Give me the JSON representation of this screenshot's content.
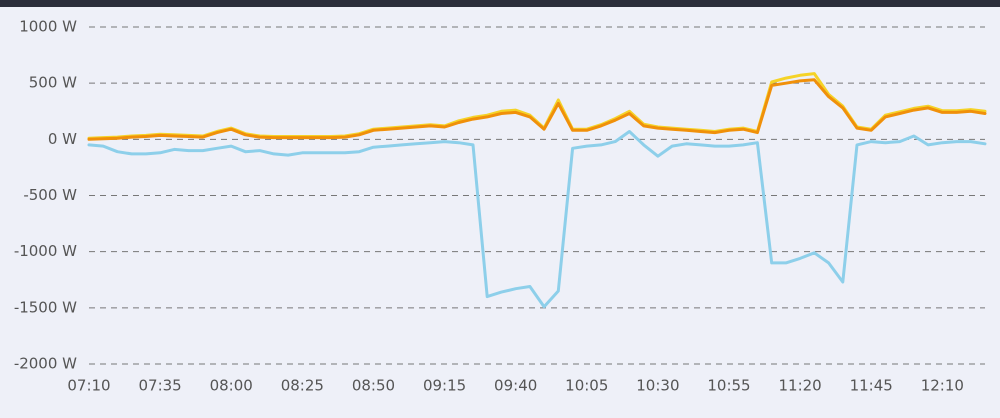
{
  "chart_data": {
    "type": "line",
    "x": [
      "07:10",
      "07:15",
      "07:20",
      "07:25",
      "07:30",
      "07:35",
      "07:40",
      "07:45",
      "07:50",
      "07:55",
      "08:00",
      "08:05",
      "08:10",
      "08:15",
      "08:20",
      "08:25",
      "08:30",
      "08:35",
      "08:40",
      "08:45",
      "08:50",
      "08:55",
      "09:00",
      "09:05",
      "09:10",
      "09:15",
      "09:20",
      "09:25",
      "09:30",
      "09:35",
      "09:40",
      "09:45",
      "09:50",
      "09:55",
      "10:00",
      "10:05",
      "10:10",
      "10:15",
      "10:20",
      "10:25",
      "10:30",
      "10:35",
      "10:40",
      "10:45",
      "10:50",
      "10:55",
      "11:00",
      "11:05",
      "11:10",
      "11:15",
      "11:20",
      "11:25",
      "11:30",
      "11:35",
      "11:40",
      "11:45",
      "11:50",
      "11:55",
      "12:00",
      "12:05",
      "12:10",
      "12:15",
      "12:20",
      "12:25"
    ],
    "series": [
      {
        "color": "#f5d327",
        "values": [
          10,
          15,
          20,
          30,
          35,
          45,
          40,
          35,
          30,
          70,
          100,
          50,
          30,
          25,
          25,
          25,
          25,
          25,
          30,
          50,
          90,
          100,
          110,
          120,
          130,
          120,
          165,
          195,
          215,
          250,
          260,
          215,
          100,
          350,
          90,
          90,
          130,
          185,
          250,
          135,
          110,
          100,
          90,
          80,
          70,
          90,
          100,
          70,
          510,
          545,
          570,
          585,
          400,
          295,
          110,
          90,
          215,
          245,
          275,
          295,
          255,
          255,
          265,
          250
        ]
      },
      {
        "color": "#f0900a",
        "values": [
          0,
          5,
          10,
          20,
          25,
          35,
          30,
          25,
          20,
          60,
          90,
          40,
          20,
          15,
          15,
          15,
          15,
          15,
          20,
          40,
          80,
          90,
          100,
          110,
          120,
          110,
          150,
          180,
          200,
          230,
          240,
          200,
          90,
          320,
          80,
          80,
          120,
          170,
          230,
          120,
          100,
          90,
          80,
          70,
          60,
          80,
          90,
          60,
          480,
          500,
          520,
          530,
          380,
          280,
          100,
          80,
          200,
          230,
          260,
          280,
          240,
          240,
          250,
          230
        ]
      },
      {
        "color": "#8dcfea",
        "values": [
          -50,
          -60,
          -110,
          -130,
          -130,
          -120,
          -90,
          -100,
          -100,
          -80,
          -60,
          -110,
          -100,
          -130,
          -140,
          -120,
          -120,
          -120,
          -120,
          -110,
          -70,
          -60,
          -50,
          -40,
          -30,
          -20,
          -30,
          -50,
          -1400,
          -1360,
          -1330,
          -1310,
          -1490,
          -1350,
          -80,
          -60,
          -50,
          -20,
          70,
          -50,
          -150,
          -60,
          -40,
          -50,
          -60,
          -60,
          -50,
          -30,
          -1100,
          -1100,
          -1060,
          -1010,
          -1100,
          -1270,
          -50,
          -20,
          -30,
          -20,
          30,
          -50,
          -30,
          -20,
          -20,
          -40
        ]
      }
    ],
    "xlim": [
      "07:10",
      "12:25"
    ],
    "xticks": [
      "07:10",
      "07:35",
      "08:00",
      "08:25",
      "08:50",
      "09:15",
      "09:40",
      "10:05",
      "10:30",
      "10:55",
      "11:20",
      "11:45",
      "12:10"
    ],
    "ylim": [
      -2000,
      1000
    ],
    "yticks": [
      {
        "value": -2000,
        "label": "-2000 W"
      },
      {
        "value": -1500,
        "label": "-1500 W"
      },
      {
        "value": -1000,
        "label": "-1000 W"
      },
      {
        "value": -500,
        "label": "-500 W"
      },
      {
        "value": 0,
        "label": "0 W"
      },
      {
        "value": 500,
        "label": "500 W"
      },
      {
        "value": 1000,
        "label": "1000 W"
      }
    ],
    "grid": true
  }
}
